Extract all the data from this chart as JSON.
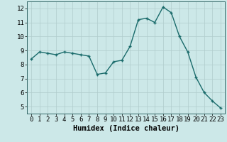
{
  "x": [
    0,
    1,
    2,
    3,
    4,
    5,
    6,
    7,
    8,
    9,
    10,
    11,
    12,
    13,
    14,
    15,
    16,
    17,
    18,
    19,
    20,
    21,
    22,
    23
  ],
  "y": [
    8.4,
    8.9,
    8.8,
    8.7,
    8.9,
    8.8,
    8.7,
    8.6,
    7.3,
    7.4,
    8.2,
    8.3,
    9.3,
    11.2,
    11.3,
    11.0,
    12.1,
    11.7,
    10.0,
    8.9,
    7.1,
    6.0,
    5.4,
    4.9
  ],
  "line_color": "#1a6b6b",
  "marker": "+",
  "marker_size": 3,
  "bg_color": "#cce8e8",
  "grid_color": "#b0cccc",
  "xlabel": "Humidex (Indice chaleur)",
  "xlim": [
    -0.5,
    23.5
  ],
  "ylim": [
    4.5,
    12.5
  ],
  "yticks": [
    5,
    6,
    7,
    8,
    9,
    10,
    11,
    12
  ],
  "xticks": [
    0,
    1,
    2,
    3,
    4,
    5,
    6,
    7,
    8,
    9,
    10,
    11,
    12,
    13,
    14,
    15,
    16,
    17,
    18,
    19,
    20,
    21,
    22,
    23
  ],
  "tick_fontsize": 6.5,
  "xlabel_fontsize": 7.5,
  "line_width": 1.0
}
